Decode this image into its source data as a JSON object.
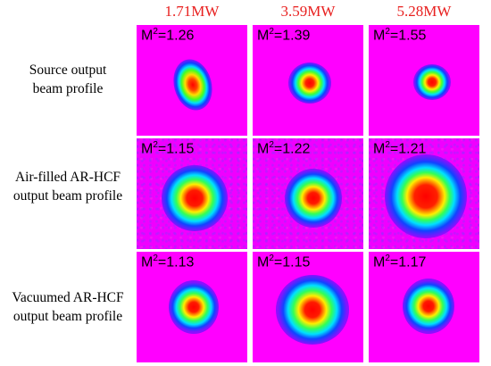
{
  "columns": [
    "1.71MW",
    "3.59MW",
    "5.28MW"
  ],
  "rows": [
    {
      "label_lines": [
        "Source output",
        "beam profile"
      ],
      "panels": [
        {
          "m2_prefix": "M",
          "m2_sup": "2",
          "m2_value": "=1.26"
        },
        {
          "m2_prefix": "M",
          "m2_sup": "2",
          "m2_value": "=1.39"
        },
        {
          "m2_prefix": "M",
          "m2_sup": "2",
          "m2_value": "=1.55"
        }
      ]
    },
    {
      "label_lines": [
        "Air-filled AR-HCF",
        "output beam profile"
      ],
      "panels": [
        {
          "m2_prefix": "M",
          "m2_sup": "2",
          "m2_value": "=1.15"
        },
        {
          "m2_prefix": "M",
          "m2_sup": "2",
          "m2_value": "=1.22"
        },
        {
          "m2_prefix": "M",
          "m2_sup": "2",
          "m2_value": "=1.21"
        }
      ]
    },
    {
      "label_lines": [
        "Vacuumed AR-HCF",
        "output beam profile"
      ],
      "panels": [
        {
          "m2_prefix": "M",
          "m2_sup": "2",
          "m2_value": "=1.13"
        },
        {
          "m2_prefix": "M",
          "m2_sup": "2",
          "m2_value": "=1.15"
        },
        {
          "m2_prefix": "M",
          "m2_sup": "2",
          "m2_value": "=1.17"
        }
      ]
    }
  ],
  "colors": {
    "header_text": "#e8201f",
    "background_magenta": "#ff00ff",
    "colormap": [
      "#ff0000",
      "#ff7a00",
      "#ffee00",
      "#33ff33",
      "#00e0ff",
      "#0044ff",
      "#7a00ff"
    ]
  }
}
